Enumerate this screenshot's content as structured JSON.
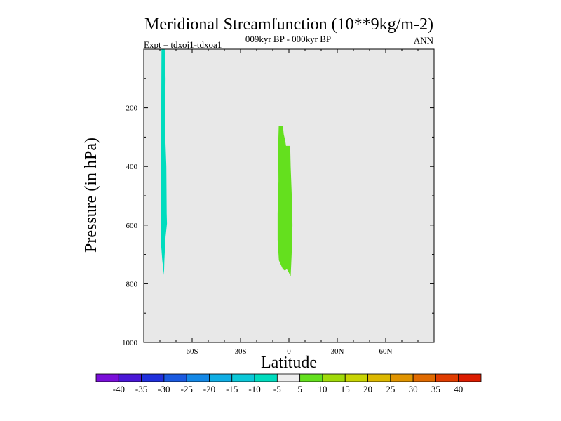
{
  "chart_data": {
    "type": "heatmap",
    "title": "Meridional Streamfunction (10**9kg/m-2)",
    "subtitle": "009kyr BP - 000kyr BP",
    "left_label": "Expt = tdxoj1-tdxoa1",
    "right_label": "ANN",
    "xlabel": "Latitude",
    "ylabel": "Pressure (in hPa)",
    "xlim": [
      -90,
      90
    ],
    "ylim": [
      0,
      1000
    ],
    "x_ticks": [
      {
        "value": -60,
        "label": "60S"
      },
      {
        "value": -30,
        "label": "30S"
      },
      {
        "value": 0,
        "label": "0"
      },
      {
        "value": 30,
        "label": "30N"
      },
      {
        "value": 60,
        "label": "60N"
      }
    ],
    "y_ticks": [
      {
        "value": 200,
        "label": "200"
      },
      {
        "value": 400,
        "label": "400"
      },
      {
        "value": 600,
        "label": "600"
      },
      {
        "value": 800,
        "label": "800"
      },
      {
        "value": 1000,
        "label": "1000"
      }
    ],
    "background_color": "#e8e8e8",
    "regions": [
      {
        "name": "negative-cell-southern",
        "range": "-10 to -5",
        "color": "#00dcbe",
        "points": [
          [
            -79,
            0
          ],
          [
            -77,
            0
          ],
          [
            -76.5,
            100
          ],
          [
            -76.8,
            280
          ],
          [
            -76,
            400
          ],
          [
            -75.8,
            560
          ],
          [
            -75.6,
            595
          ],
          [
            -76.5,
            640
          ],
          [
            -77.2,
            720
          ],
          [
            -77.5,
            770
          ],
          [
            -78.5,
            720
          ],
          [
            -79.5,
            650
          ],
          [
            -79.3,
            500
          ],
          [
            -79.2,
            300
          ],
          [
            -79.1,
            100
          ]
        ]
      },
      {
        "name": "positive-cell-equatorial",
        "range": "5 to 10",
        "color": "#64e01e",
        "points": [
          [
            -6.3,
            262
          ],
          [
            -3.7,
            262
          ],
          [
            -3.2,
            290
          ],
          [
            -2.3,
            312
          ],
          [
            -1.8,
            330
          ],
          [
            0.8,
            330
          ],
          [
            1.1,
            400
          ],
          [
            1.8,
            500
          ],
          [
            2.2,
            600
          ],
          [
            1.7,
            700
          ],
          [
            1.1,
            775
          ],
          [
            -0.2,
            760
          ],
          [
            -1.3,
            750
          ],
          [
            -2.5,
            755
          ],
          [
            -3.8,
            750
          ],
          [
            -6.2,
            720
          ],
          [
            -7,
            650
          ],
          [
            -7,
            560
          ],
          [
            -6.5,
            450
          ],
          [
            -6.6,
            320
          ]
        ]
      }
    ],
    "colorbar": {
      "labels": [
        "-40",
        "-35",
        "-30",
        "-25",
        "-20",
        "-15",
        "-10",
        "-5",
        "5",
        "10",
        "15",
        "20",
        "25",
        "30",
        "35",
        "40"
      ],
      "colors": [
        "#7a0fd9",
        "#4a17d6",
        "#2030dc",
        "#1a5ae0",
        "#1488e6",
        "#10aee4",
        "#0cc8d8",
        "#00dcbe",
        "#eeeeee",
        "#64e01e",
        "#a0da0a",
        "#c8d404",
        "#dcb800",
        "#e09400",
        "#e06a00",
        "#e03c00",
        "#dc1c00"
      ]
    }
  }
}
